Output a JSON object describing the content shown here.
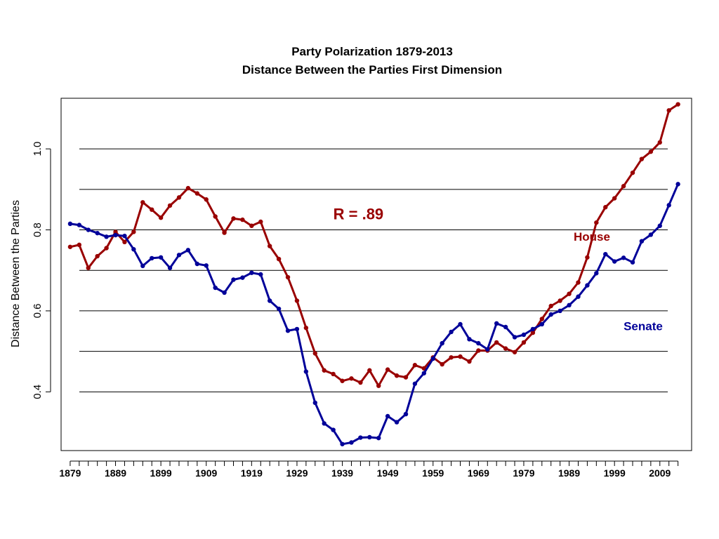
{
  "chart_data": {
    "type": "line",
    "title": "Party Polarization 1879-2013",
    "subtitle": "Distance Between the Parties First Dimension",
    "xlabel": "",
    "ylabel": "Distance Between the Parties",
    "xlim": [
      1877,
      2016
    ],
    "ylim": [
      0.255,
      1.125
    ],
    "x_ticks": [
      1879,
      1881,
      1883,
      1885,
      1887,
      1889,
      1891,
      1893,
      1895,
      1897,
      1899,
      1901,
      1903,
      1905,
      1907,
      1909,
      1911,
      1913,
      1915,
      1917,
      1919,
      1921,
      1923,
      1925,
      1927,
      1929,
      1931,
      1933,
      1935,
      1937,
      1939,
      1941,
      1943,
      1945,
      1947,
      1949,
      1951,
      1953,
      1955,
      1957,
      1959,
      1961,
      1963,
      1965,
      1967,
      1969,
      1971,
      1973,
      1975,
      1977,
      1979,
      1981,
      1983,
      1985,
      1987,
      1989,
      1991,
      1993,
      1995,
      1997,
      1999,
      2001,
      2003,
      2005,
      2007,
      2009,
      2011,
      2013
    ],
    "x_tick_labels": [
      "1879",
      "1889",
      "1899",
      "1909",
      "1919",
      "1929",
      "1939",
      "1949",
      "1959",
      "1969",
      "1979",
      "1989",
      "1999",
      "2009"
    ],
    "y_tick_labels": [
      "0.4",
      "0.6",
      "0.8",
      "1.0"
    ],
    "y_ticks": [
      0.4,
      0.6,
      0.8,
      1.0
    ],
    "gridlines": [
      0.4,
      0.5,
      0.6,
      0.7,
      0.8,
      0.9,
      1.0
    ],
    "grid": true,
    "x": [
      1879,
      1881,
      1883,
      1885,
      1887,
      1889,
      1891,
      1893,
      1895,
      1897,
      1899,
      1901,
      1903,
      1905,
      1907,
      1909,
      1911,
      1913,
      1915,
      1917,
      1919,
      1921,
      1923,
      1925,
      1927,
      1929,
      1931,
      1933,
      1935,
      1937,
      1939,
      1941,
      1943,
      1945,
      1947,
      1949,
      1951,
      1953,
      1955,
      1957,
      1959,
      1961,
      1963,
      1965,
      1967,
      1969,
      1971,
      1973,
      1975,
      1977,
      1979,
      1981,
      1983,
      1985,
      1987,
      1989,
      1991,
      1993,
      1995,
      1997,
      1999,
      2001,
      2003,
      2005,
      2007,
      2009,
      2011,
      2013
    ],
    "series": [
      {
        "name": "House",
        "color": "#990000",
        "values": [
          0.758,
          0.763,
          0.706,
          0.735,
          0.755,
          0.795,
          0.77,
          0.795,
          0.868,
          0.85,
          0.83,
          0.86,
          0.88,
          0.903,
          0.89,
          0.875,
          0.833,
          0.793,
          0.828,
          0.825,
          0.81,
          0.82,
          0.76,
          0.728,
          0.683,
          0.625,
          0.558,
          0.495,
          0.453,
          0.444,
          0.427,
          0.433,
          0.423,
          0.453,
          0.415,
          0.455,
          0.44,
          0.436,
          0.466,
          0.458,
          0.485,
          0.468,
          0.485,
          0.487,
          0.475,
          0.502,
          0.502,
          0.522,
          0.507,
          0.498,
          0.522,
          0.546,
          0.58,
          0.612,
          0.625,
          0.642,
          0.67,
          0.732,
          0.818,
          0.856,
          0.878,
          0.908,
          0.941,
          0.975,
          0.993,
          1.016,
          1.095,
          1.11
        ]
      },
      {
        "name": "Senate",
        "color": "#000099",
        "values": [
          0.815,
          0.812,
          0.8,
          0.792,
          0.783,
          0.787,
          0.785,
          0.752,
          0.711,
          0.73,
          0.732,
          0.706,
          0.738,
          0.75,
          0.716,
          0.712,
          0.657,
          0.645,
          0.677,
          0.682,
          0.694,
          0.69,
          0.625,
          0.605,
          0.551,
          0.555,
          0.45,
          0.373,
          0.322,
          0.306,
          0.271,
          0.275,
          0.287,
          0.288,
          0.286,
          0.34,
          0.325,
          0.345,
          0.42,
          0.446,
          0.482,
          0.52,
          0.548,
          0.567,
          0.53,
          0.52,
          0.505,
          0.569,
          0.56,
          0.535,
          0.541,
          0.555,
          0.567,
          0.591,
          0.6,
          0.614,
          0.635,
          0.663,
          0.693,
          0.74,
          0.722,
          0.731,
          0.72,
          0.772,
          0.788,
          0.81,
          0.861,
          0.913
        ]
      }
    ],
    "annotations": [
      {
        "text": "R = .89",
        "x": 1937,
        "y": 0.826,
        "color": "#990000"
      },
      {
        "text": "House",
        "x": 1990,
        "y": 0.773,
        "color": "#990000"
      },
      {
        "text": "Senate",
        "x": 2001,
        "y": 0.552,
        "color": "#000099"
      }
    ]
  }
}
